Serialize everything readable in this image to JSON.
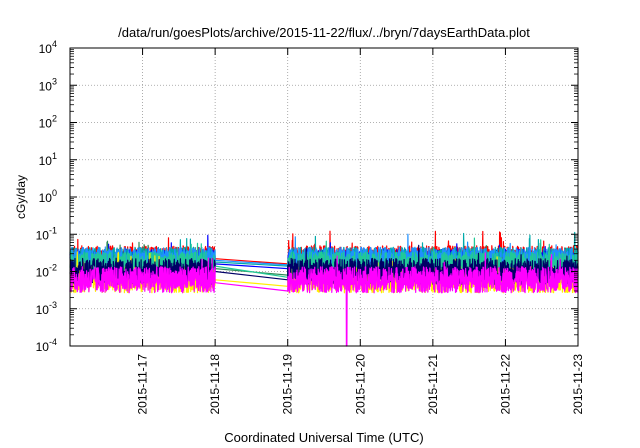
{
  "chart_data": {
    "type": "line",
    "title": "/data/run/goesPlots/archive/2015-11-22/flux/../bryn/7daysEarthData.plot",
    "xlabel": "Coordinated Universal Time (UTC)",
    "ylabel": "cGy/day",
    "y_scale": "log",
    "ylim_exponents": [
      -4,
      4
    ],
    "y_tick_base": "10",
    "y_tick_exponents": [
      "-4",
      "-3",
      "-2",
      "-1",
      "0",
      "1",
      "2",
      "3",
      "4"
    ],
    "x_range_days": [
      "2015-11-16",
      "2015-11-23"
    ],
    "x_ticks": [
      "2015-11-17",
      "2015-11-18",
      "2015-11-19",
      "2015-11-20",
      "2015-11-21",
      "2015-11-22",
      "2015-11-23"
    ],
    "grid": true,
    "data_gap": [
      "2015-11-18",
      "2015-11-19"
    ],
    "series": [
      {
        "color": "#ff0000",
        "typical": 0.022,
        "before_gap": 0.022,
        "after_gap": 0.016
      },
      {
        "color": "#0000ff",
        "typical": 0.018,
        "before_gap": 0.016,
        "after_gap": 0.012
      },
      {
        "color": "#00aaaa",
        "typical": 0.02,
        "before_gap": 0.018,
        "after_gap": 0.014
      },
      {
        "color": "#2e8b57",
        "typical": 0.012,
        "before_gap": 0.012,
        "after_gap": 0.008
      },
      {
        "color": "#1e90ff",
        "typical": 0.02,
        "before_gap": 0.02,
        "after_gap": 0.015
      },
      {
        "color": "#20c997",
        "typical": 0.015,
        "before_gap": 0.014,
        "after_gap": 0.007
      },
      {
        "color": "#ffee00",
        "typical": 0.006,
        "before_gap": 0.006,
        "after_gap": 0.004
      },
      {
        "color": "#000066",
        "typical": 0.01,
        "before_gap": 0.01,
        "after_gap": 0.006
      },
      {
        "color": "#ff00ff",
        "typical": 0.006,
        "before_gap": 0.005,
        "after_gap": 0.003
      }
    ],
    "annotations": [
      {
        "series": 8,
        "date": "2015-11-19",
        "hour": 19.5,
        "min_value": 0.0001
      }
    ]
  }
}
